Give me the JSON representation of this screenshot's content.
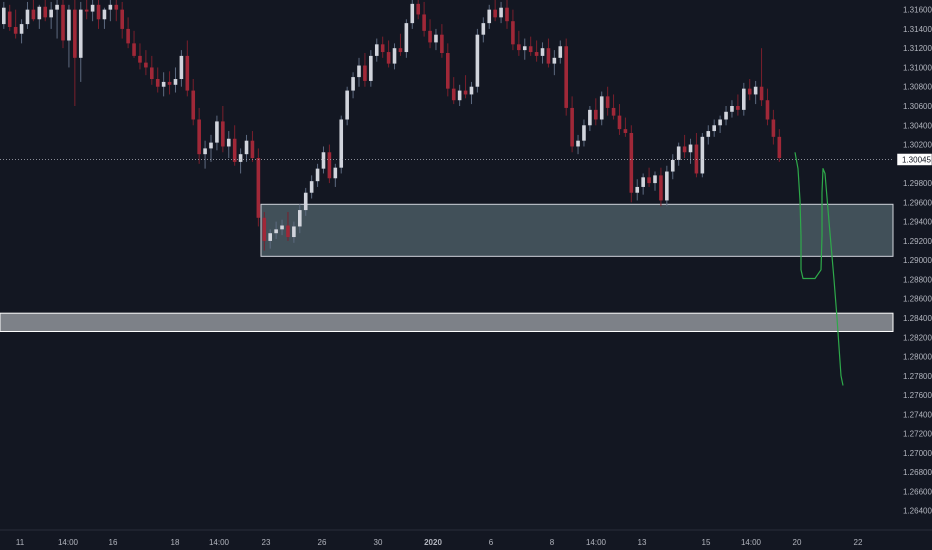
{
  "chart_data": {
    "type": "candlestick",
    "y_axis": {
      "ticks": [
        "1.31600",
        "1.31400",
        "1.31200",
        "1.31000",
        "1.30800",
        "1.30600",
        "1.30400",
        "1.30200",
        "1.29800",
        "1.29600",
        "1.29400",
        "1.29200",
        "1.29000",
        "1.28800",
        "1.28600",
        "1.28400",
        "1.28200",
        "1.28000",
        "1.27800",
        "1.27600",
        "1.27400",
        "1.27200",
        "1.27000",
        "1.26800",
        "1.26600",
        "1.26400"
      ],
      "range": [
        1.262,
        1.317
      ]
    },
    "current_price": {
      "label": "1.30045",
      "value": 1.30045
    },
    "x_axis": {
      "labels": [
        "11",
        "14:00",
        "16",
        "18",
        "14:00",
        "23",
        "26",
        "30",
        "2020",
        "6",
        "8",
        "14:00",
        "13",
        "15",
        "14:00",
        "20",
        "22"
      ],
      "bold_label": "2020"
    },
    "zones": [
      {
        "name": "demand-zone",
        "price_top": 1.2958,
        "price_bottom": 1.2904
      },
      {
        "name": "lower-support-zone",
        "price_top": 1.2845,
        "price_bottom": 1.2826
      }
    ],
    "projection": {
      "color": "#2ea94a",
      "path_prices": [
        1.3012,
        1.2995,
        1.2962,
        1.2925,
        1.289,
        1.2881,
        1.2881,
        1.289,
        1.2925,
        1.297,
        1.2995,
        1.299,
        1.294,
        1.288,
        1.284,
        1.278,
        1.277
      ]
    },
    "candles": [
      [
        1.3145,
        1.3168,
        1.314,
        1.3162
      ],
      [
        1.3158,
        1.3165,
        1.3138,
        1.3142
      ],
      [
        1.3142,
        1.316,
        1.313,
        1.3135
      ],
      [
        1.3135,
        1.315,
        1.3125,
        1.3145
      ],
      [
        1.3145,
        1.3168,
        1.314,
        1.316
      ],
      [
        1.316,
        1.3172,
        1.3148,
        1.315
      ],
      [
        1.315,
        1.3165,
        1.314,
        1.3163
      ],
      [
        1.3163,
        1.317,
        1.3148,
        1.3152
      ],
      [
        1.3152,
        1.3168,
        1.314,
        1.316
      ],
      [
        1.316,
        1.3172,
        1.313,
        1.3165
      ],
      [
        1.3165,
        1.317,
        1.312,
        1.3128
      ],
      [
        1.3128,
        1.3165,
        1.31,
        1.316
      ],
      [
        1.316,
        1.317,
        1.306,
        1.311
      ],
      [
        1.311,
        1.3168,
        1.3085,
        1.316
      ],
      [
        1.316,
        1.3172,
        1.315,
        1.3158
      ],
      [
        1.3158,
        1.3172,
        1.3148,
        1.3165
      ],
      [
        1.3165,
        1.317,
        1.314,
        1.315
      ],
      [
        1.315,
        1.3162,
        1.314,
        1.316
      ],
      [
        1.316,
        1.3172,
        1.3148,
        1.3165
      ],
      [
        1.3165,
        1.3172,
        1.3148,
        1.316
      ],
      [
        1.316,
        1.3168,
        1.313,
        1.314
      ],
      [
        1.314,
        1.3152,
        1.312,
        1.3125
      ],
      [
        1.3125,
        1.3138,
        1.311,
        1.3112
      ],
      [
        1.3112,
        1.3125,
        1.3098,
        1.3105
      ],
      [
        1.3105,
        1.3118,
        1.3092,
        1.31
      ],
      [
        1.31,
        1.3112,
        1.3082,
        1.3088
      ],
      [
        1.3088,
        1.31,
        1.3074,
        1.308
      ],
      [
        1.308,
        1.3095,
        1.307,
        1.3085
      ],
      [
        1.3085,
        1.3096,
        1.3072,
        1.3082
      ],
      [
        1.3082,
        1.31,
        1.3074,
        1.3088
      ],
      [
        1.3088,
        1.3118,
        1.308,
        1.3112
      ],
      [
        1.3112,
        1.3128,
        1.307,
        1.3076
      ],
      [
        1.3076,
        1.3088,
        1.304,
        1.3046
      ],
      [
        1.3046,
        1.3058,
        1.3,
        1.301
      ],
      [
        1.301,
        1.3024,
        1.2995,
        1.3016
      ],
      [
        1.3016,
        1.303,
        1.3002,
        1.3022
      ],
      [
        1.3022,
        1.305,
        1.3014,
        1.3044
      ],
      [
        1.3044,
        1.306,
        1.3012,
        1.3018
      ],
      [
        1.3018,
        1.3034,
        1.3006,
        1.3026
      ],
      [
        1.3026,
        1.304,
        1.2998,
        1.3002
      ],
      [
        1.3002,
        1.3016,
        1.299,
        1.301
      ],
      [
        1.301,
        1.303,
        1.3002,
        1.3024
      ],
      [
        1.3024,
        1.3034,
        1.3002,
        1.3006
      ],
      [
        1.3006,
        1.3016,
        1.2935,
        1.2944
      ],
      [
        1.2944,
        1.295,
        1.291,
        1.292
      ],
      [
        1.292,
        1.2932,
        1.2912,
        1.2928
      ],
      [
        1.2928,
        1.294,
        1.2922,
        1.2932
      ],
      [
        1.2932,
        1.2942,
        1.2926,
        1.2936
      ],
      [
        1.2936,
        1.295,
        1.292,
        1.2924
      ],
      [
        1.2924,
        1.294,
        1.2918,
        1.2935
      ],
      [
        1.2935,
        1.2958,
        1.2928,
        1.2952
      ],
      [
        1.2952,
        1.2975,
        1.2946,
        1.297
      ],
      [
        1.297,
        1.2988,
        1.2964,
        1.2982
      ],
      [
        1.2982,
        1.3,
        1.2976,
        1.2995
      ],
      [
        1.2995,
        1.3018,
        1.299,
        1.3012
      ],
      [
        1.3012,
        1.302,
        1.298,
        1.2985
      ],
      [
        1.2985,
        1.3,
        1.2976,
        1.2996
      ],
      [
        1.2996,
        1.305,
        1.299,
        1.3046
      ],
      [
        1.3046,
        1.308,
        1.304,
        1.3076
      ],
      [
        1.3076,
        1.3095,
        1.3068,
        1.309
      ],
      [
        1.309,
        1.311,
        1.308,
        1.3102
      ],
      [
        1.3102,
        1.3115,
        1.308,
        1.3086
      ],
      [
        1.3086,
        1.3118,
        1.308,
        1.3112
      ],
      [
        1.3112,
        1.313,
        1.3106,
        1.3124
      ],
      [
        1.3124,
        1.3132,
        1.311,
        1.3116
      ],
      [
        1.3116,
        1.3128,
        1.31,
        1.3104
      ],
      [
        1.3104,
        1.3125,
        1.3098,
        1.312
      ],
      [
        1.312,
        1.3135,
        1.3112,
        1.3116
      ],
      [
        1.3116,
        1.315,
        1.311,
        1.3146
      ],
      [
        1.3146,
        1.317,
        1.314,
        1.3166
      ],
      [
        1.3166,
        1.3172,
        1.315,
        1.3155
      ],
      [
        1.3155,
        1.3168,
        1.3132,
        1.3138
      ],
      [
        1.3138,
        1.315,
        1.312,
        1.3126
      ],
      [
        1.3126,
        1.314,
        1.3118,
        1.3134
      ],
      [
        1.3134,
        1.3145,
        1.311,
        1.3115
      ],
      [
        1.3115,
        1.3125,
        1.307,
        1.3078
      ],
      [
        1.3078,
        1.309,
        1.3062,
        1.3066
      ],
      [
        1.3066,
        1.3082,
        1.306,
        1.3076
      ],
      [
        1.3076,
        1.3092,
        1.3068,
        1.3072
      ],
      [
        1.3072,
        1.3085,
        1.3062,
        1.308
      ],
      [
        1.308,
        1.314,
        1.3074,
        1.3134
      ],
      [
        1.3134,
        1.3152,
        1.3126,
        1.3146
      ],
      [
        1.3146,
        1.3165,
        1.314,
        1.316
      ],
      [
        1.316,
        1.3172,
        1.3148,
        1.3152
      ],
      [
        1.3152,
        1.3168,
        1.3146,
        1.3162
      ],
      [
        1.3162,
        1.3172,
        1.314,
        1.3148
      ],
      [
        1.3148,
        1.316,
        1.3118,
        1.3124
      ],
      [
        1.3124,
        1.3138,
        1.3112,
        1.3118
      ],
      [
        1.3118,
        1.313,
        1.3108,
        1.3122
      ],
      [
        1.3122,
        1.3132,
        1.3112,
        1.3116
      ],
      [
        1.3116,
        1.3128,
        1.3106,
        1.3112
      ],
      [
        1.3112,
        1.3126,
        1.3104,
        1.312
      ],
      [
        1.312,
        1.313,
        1.31,
        1.3104
      ],
      [
        1.3104,
        1.3118,
        1.3092,
        1.311
      ],
      [
        1.311,
        1.3128,
        1.3104,
        1.3122
      ],
      [
        1.3122,
        1.313,
        1.305,
        1.3058
      ],
      [
        1.3058,
        1.307,
        1.3012,
        1.3018
      ],
      [
        1.3018,
        1.303,
        1.301,
        1.3024
      ],
      [
        1.3024,
        1.3046,
        1.3018,
        1.304
      ],
      [
        1.304,
        1.306,
        1.3034,
        1.3056
      ],
      [
        1.3056,
        1.3068,
        1.304,
        1.3046
      ],
      [
        1.3046,
        1.3075,
        1.304,
        1.307
      ],
      [
        1.307,
        1.308,
        1.305,
        1.3058
      ],
      [
        1.3058,
        1.3072,
        1.3046,
        1.305
      ],
      [
        1.305,
        1.3062,
        1.303,
        1.3036
      ],
      [
        1.3036,
        1.3048,
        1.3028,
        1.3032
      ],
      [
        1.3032,
        1.304,
        1.296,
        1.297
      ],
      [
        1.297,
        1.2984,
        1.2962,
        1.2976
      ],
      [
        1.2976,
        1.299,
        1.2968,
        1.2986
      ],
      [
        1.2986,
        1.2996,
        1.2976,
        1.298
      ],
      [
        1.298,
        1.2992,
        1.2972,
        1.2988
      ],
      [
        1.2988,
        1.2996,
        1.2956,
        1.2962
      ],
      [
        1.2962,
        1.2998,
        1.2956,
        1.2992
      ],
      [
        1.2992,
        1.301,
        1.2984,
        1.3004
      ],
      [
        1.3004,
        1.3022,
        1.2998,
        1.3018
      ],
      [
        1.3018,
        1.303,
        1.3006,
        1.3012
      ],
      [
        1.3012,
        1.3026,
        1.3,
        1.302
      ],
      [
        1.302,
        1.3032,
        1.2986,
        1.299
      ],
      [
        1.299,
        1.3032,
        1.2986,
        1.3028
      ],
      [
        1.3028,
        1.304,
        1.302,
        1.3034
      ],
      [
        1.3034,
        1.3046,
        1.3028,
        1.304
      ],
      [
        1.304,
        1.305,
        1.3032,
        1.3046
      ],
      [
        1.3046,
        1.306,
        1.304,
        1.3054
      ],
      [
        1.3054,
        1.3066,
        1.3048,
        1.306
      ],
      [
        1.306,
        1.3072,
        1.305,
        1.3056
      ],
      [
        1.3056,
        1.3084,
        1.305,
        1.3078
      ],
      [
        1.3078,
        1.3088,
        1.3066,
        1.3072
      ],
      [
        1.3072,
        1.3086,
        1.3062,
        1.308
      ],
      [
        1.308,
        1.312,
        1.306,
        1.3066
      ],
      [
        1.3066,
        1.3078,
        1.304,
        1.3046
      ],
      [
        1.3046,
        1.3056,
        1.302,
        1.3028
      ],
      [
        1.3028,
        1.3036,
        1.3002,
        1.3006
      ]
    ]
  }
}
